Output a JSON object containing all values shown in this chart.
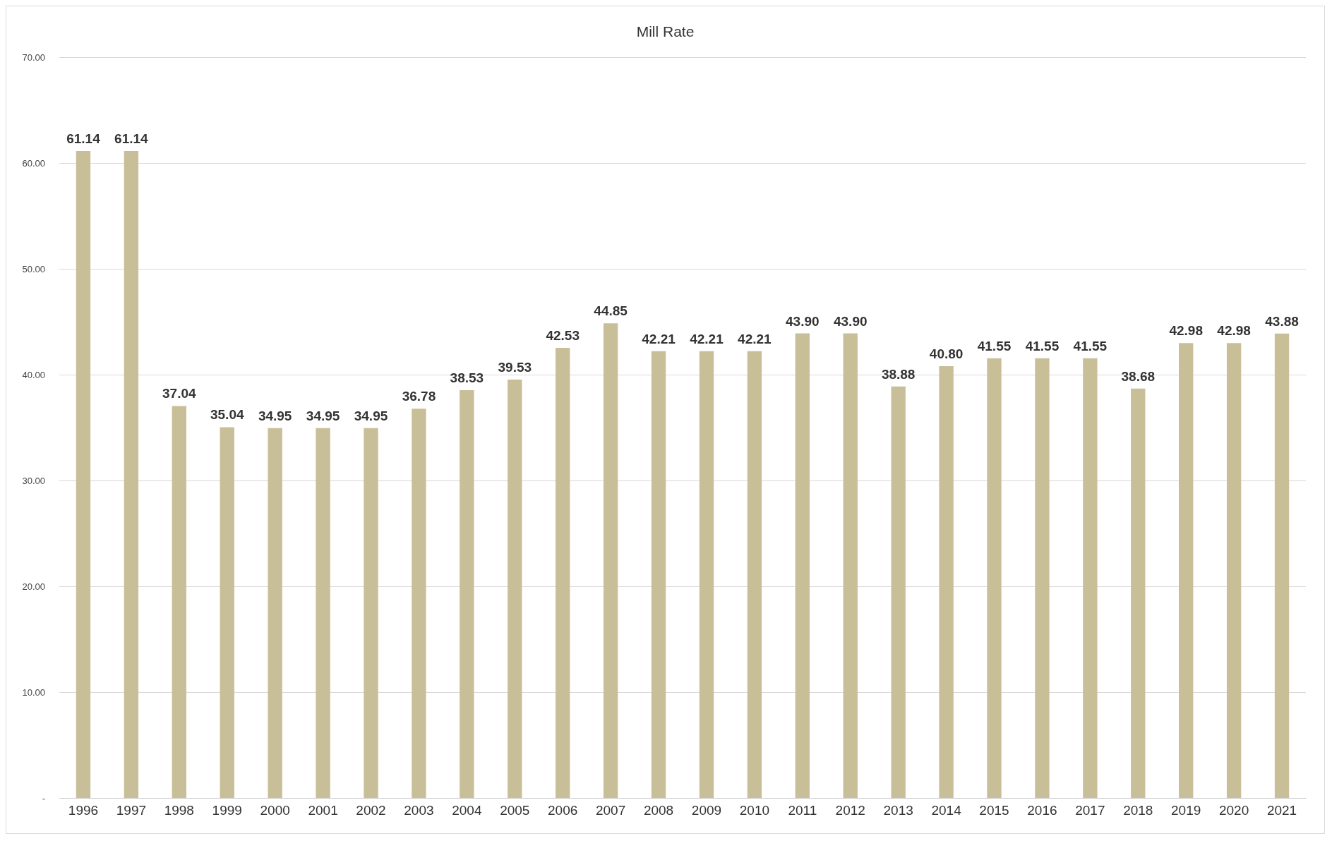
{
  "chart_data": {
    "type": "bar",
    "title": "Mill Rate",
    "categories": [
      "1996",
      "1997",
      "1998",
      "1999",
      "2000",
      "2001",
      "2002",
      "2003",
      "2004",
      "2005",
      "2006",
      "2007",
      "2008",
      "2009",
      "2010",
      "2011",
      "2012",
      "2013",
      "2014",
      "2015",
      "2016",
      "2017",
      "2018",
      "2019",
      "2020",
      "2021"
    ],
    "values": [
      61.14,
      61.14,
      37.04,
      35.04,
      34.95,
      34.95,
      34.95,
      36.78,
      38.53,
      39.53,
      42.53,
      44.85,
      42.21,
      42.21,
      42.21,
      43.9,
      43.9,
      38.88,
      40.8,
      41.55,
      41.55,
      41.55,
      38.68,
      42.98,
      42.98,
      43.88
    ],
    "value_labels": [
      "61.14",
      "61.14",
      "37.04",
      "35.04",
      "34.95",
      "34.95",
      "34.95",
      "36.78",
      "38.53",
      "39.53",
      "42.53",
      "44.85",
      "42.21",
      "42.21",
      "42.21",
      "43.90",
      "43.90",
      "38.88",
      "40.80",
      "41.55",
      "41.55",
      "41.55",
      "38.68",
      "42.98",
      "42.98",
      "43.88"
    ],
    "color": "#c8bf99",
    "ylim": [
      0,
      70
    ],
    "yticks": [
      {
        "value": 0,
        "label": "-"
      },
      {
        "value": 10,
        "label": "10.00"
      },
      {
        "value": 20,
        "label": "20.00"
      },
      {
        "value": 30,
        "label": "30.00"
      },
      {
        "value": 40,
        "label": "40.00"
      },
      {
        "value": 50,
        "label": "50.00"
      },
      {
        "value": 60,
        "label": "60.00"
      },
      {
        "value": 70,
        "label": "70.00"
      }
    ],
    "grid": "y"
  }
}
